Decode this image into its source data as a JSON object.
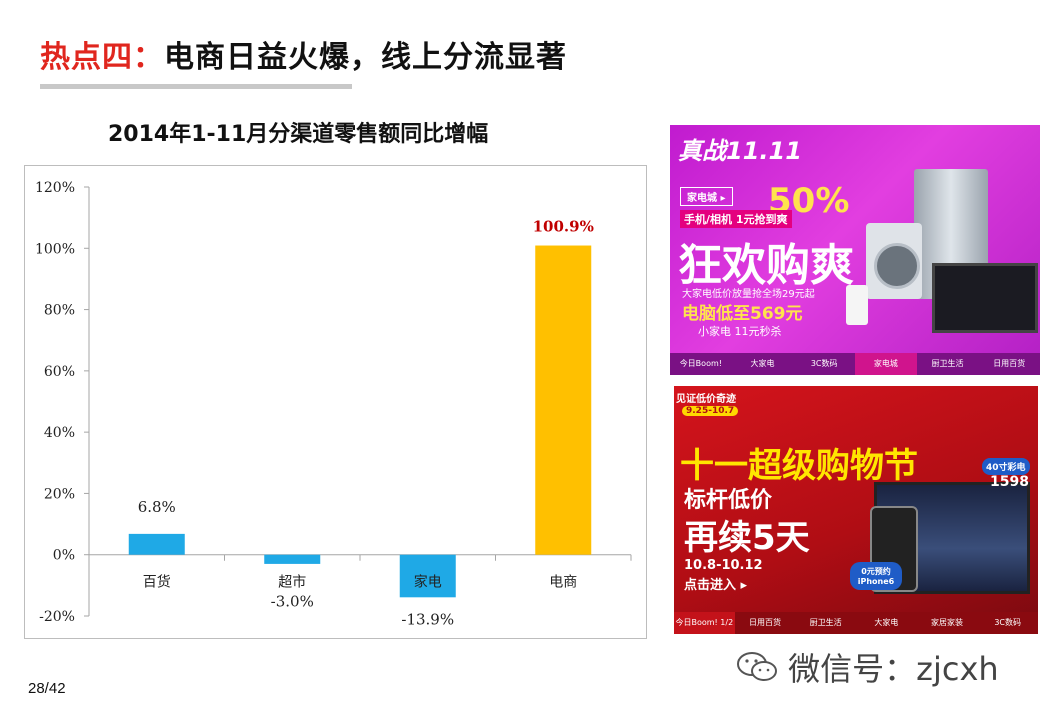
{
  "slide": {
    "title_prefix": "热点四：",
    "title_main": "电商日益火爆，线上分流显著",
    "page_number": "28/42"
  },
  "chart_data": {
    "type": "bar",
    "title": "2014年1-11月分渠道零售额同比增幅",
    "categories": [
      "百货",
      "超市",
      "家电",
      "电商"
    ],
    "values": [
      6.8,
      -3.0,
      -13.9,
      100.9
    ],
    "data_labels": [
      "6.8%",
      "-3.0%",
      "-13.9%",
      "100.9%"
    ],
    "y_ticks": [
      "120%",
      "100%",
      "80%",
      "60%",
      "40%",
      "20%",
      "0%",
      "-20%"
    ],
    "ylim": [
      -20,
      120
    ],
    "colors": [
      "#1fa9e6",
      "#1fa9e6",
      "#1fa9e6",
      "#ffc000"
    ],
    "highlight_label_color": "#c00000",
    "grid": false,
    "legend": "none"
  },
  "ads": {
    "ad1": {
      "logo": "真战11.11",
      "pill": "家电城 ▸",
      "discount": "50%",
      "tagline": "手机/相机 1元抢到爽",
      "headline": "狂欢购爽",
      "subline": "大家电低价放量抢全场29元起",
      "price": "电脑低至569元",
      "small": "小家电 11元秒杀",
      "nav": [
        "今日Boom!",
        "大家电",
        "3C数码",
        "家电城",
        "厨卫生活",
        "日用百货"
      ]
    },
    "ad2": {
      "banner": "见证低价奇迹",
      "date_range": "9.25-10.7",
      "headline": "十一超级购物节",
      "sub1": "标杆低价",
      "sub2": "再续5天",
      "dates": "10.8-10.12",
      "cta": "点击进入 ▸",
      "badge_tv": "40寸彩电",
      "badge_price": "1598",
      "badge_phone": "0元预约 iPhone6",
      "nav": [
        "今日Boom! 1/2",
        "日用百货",
        "厨卫生活",
        "大家电",
        "家居家装",
        "3C数码"
      ]
    }
  },
  "watermark": "微信号：zjcxh"
}
